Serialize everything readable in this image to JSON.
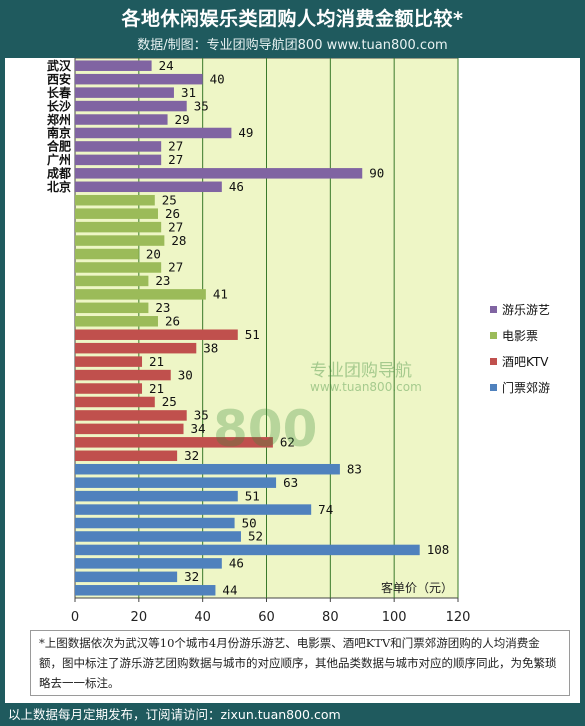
{
  "header": {
    "title": "各地休闲娱乐类团购人均消费金额比较*",
    "subtitle": "数据/制图：专业团购导航团800    www.tuan800.com"
  },
  "watermark": {
    "brand_number": "800",
    "brand_text": "专业团购导航",
    "url": "www.tuan800.com"
  },
  "chart_data": {
    "type": "bar",
    "orientation": "horizontal",
    "xlabel": "客单价（元）",
    "xlim": [
      0,
      120
    ],
    "xticks": [
      0,
      20,
      40,
      60,
      80,
      100,
      120
    ],
    "grid": true,
    "legend_position": "right",
    "categories": [
      "武汉",
      "西安",
      "长春",
      "长沙",
      "郑州",
      "南京",
      "合肥",
      "广州",
      "成都",
      "北京"
    ],
    "series": [
      {
        "name": "游乐游艺",
        "color": "#8064a2",
        "values": [
          24,
          40,
          31,
          35,
          29,
          49,
          27,
          27,
          90,
          46
        ]
      },
      {
        "name": "电影票",
        "color": "#9bbb59",
        "values": [
          25,
          26,
          27,
          28,
          20,
          27,
          23,
          41,
          23,
          26
        ]
      },
      {
        "name": "酒吧KTV",
        "color": "#c0504d",
        "values": [
          51,
          38,
          21,
          30,
          21,
          25,
          35,
          34,
          62,
          32
        ]
      },
      {
        "name": "门票郊游",
        "color": "#4f81bd",
        "values": [
          83,
          63,
          51,
          74,
          50,
          52,
          108,
          46,
          32,
          44
        ]
      }
    ]
  },
  "note": {
    "text": "*上图数据依次为武汉等10个城市4月份游乐游艺、电影票、酒吧KTV和门票郊游团购的人均消费金额，图中标注了游乐游艺团购数据与城市的对应顺序，其他品类数据与城市对应的顺序同此，为免繁琐略去一一标注。"
  },
  "footer": {
    "text": "以上数据每月定期发布，订阅请访问：zixun.tuan800.com"
  }
}
